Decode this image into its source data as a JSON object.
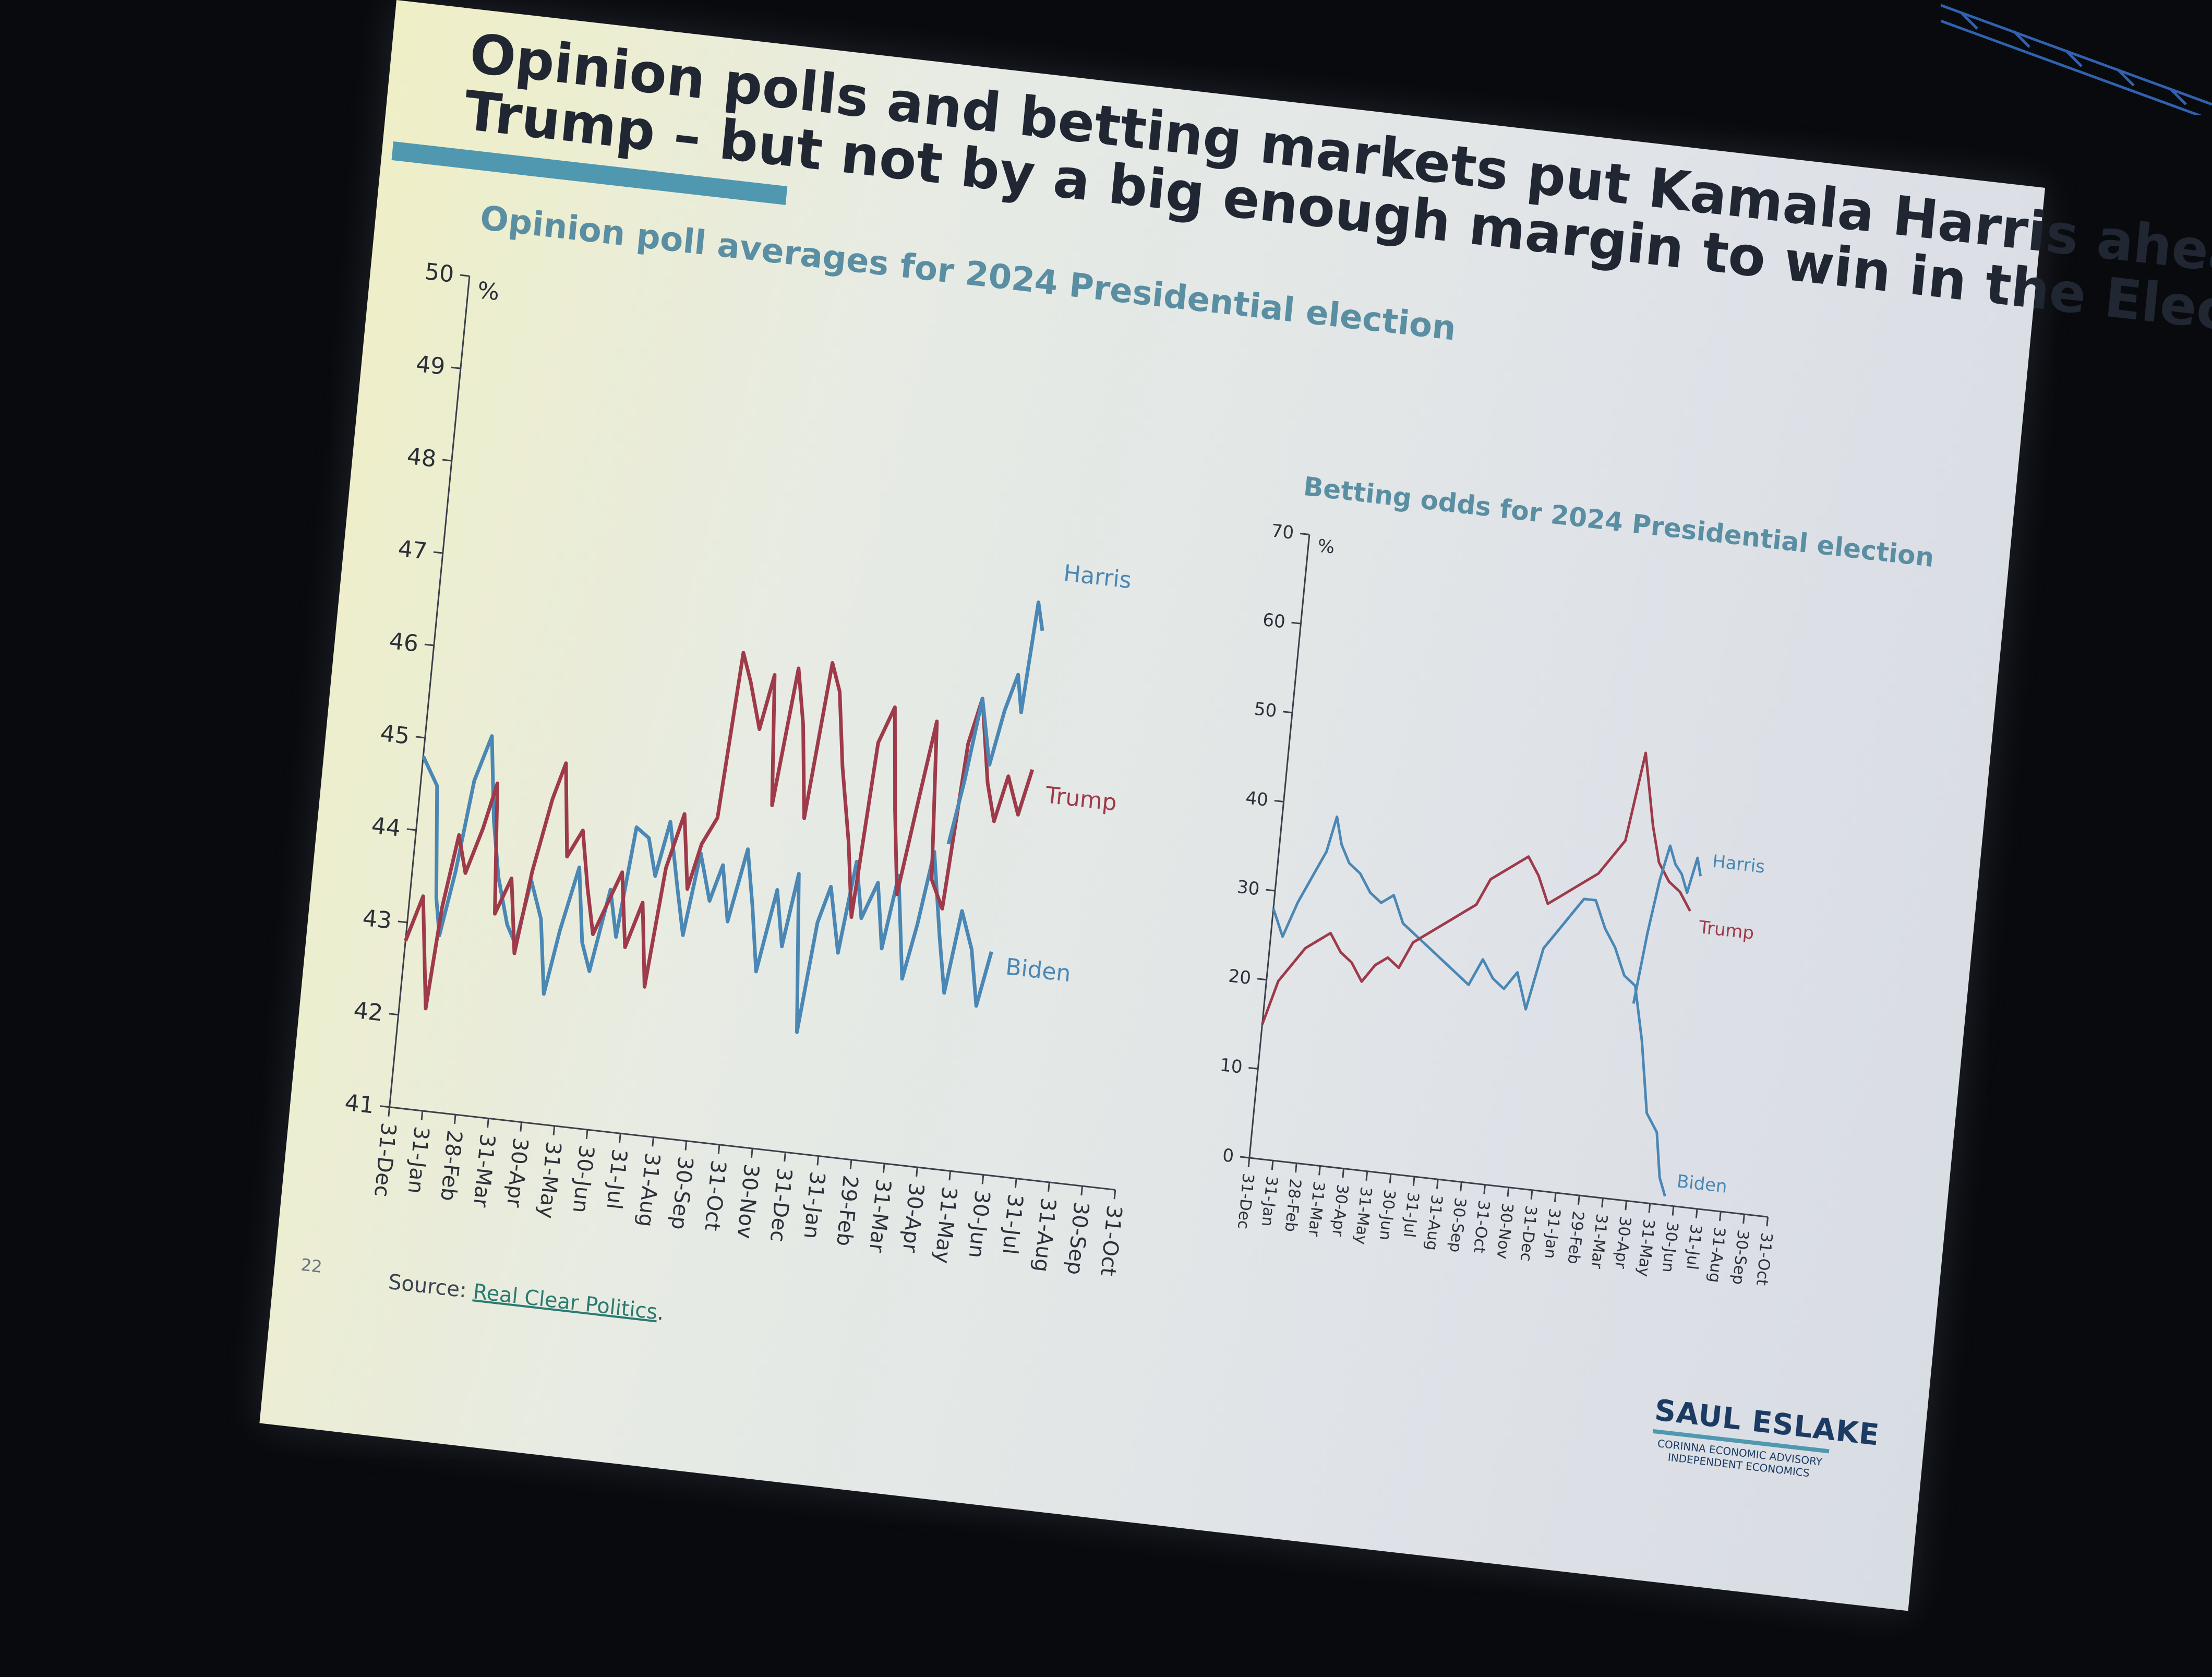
{
  "slide": {
    "title_line1": "Opinion polls and betting markets put Kamala Harris ahead of Donald",
    "title_line2": "Trump – but not by a big enough margin to win in the Electoral College",
    "page_number": "22",
    "source_label": "Source:",
    "source_link": "Real Clear Politics",
    "source_end": ".",
    "brand_name": "SAUL ESLAKE",
    "brand_line1": "CORINNA ECONOMIC ADVISORY",
    "brand_line2": "INDEPENDENT ECONOMICS"
  },
  "colors": {
    "harris": "#4a87b4",
    "trump": "#9e3a4a",
    "biden": "#4a87b4",
    "accent": "#4f98b0",
    "subtitle": "#5a8ea2"
  },
  "chart_data": [
    {
      "type": "line",
      "title": "Opinion poll averages for 2024 Presidential election",
      "ylabel": "%",
      "ylim": [
        41,
        50
      ],
      "yticks": [
        41,
        42,
        43,
        44,
        45,
        46,
        47,
        48,
        49,
        50
      ],
      "x_ticks": [
        "31-Dec",
        "31-Jan",
        "28-Feb",
        "31-Mar",
        "30-Apr",
        "31-May",
        "30-Jun",
        "31-Jul",
        "31-Aug",
        "30-Sep",
        "31-Oct",
        "30-Nov",
        "31-Dec",
        "31-Jan",
        "29-Feb",
        "31-Mar",
        "30-Apr",
        "31-May",
        "30-Jun",
        "31-Jul",
        "31-Aug",
        "30-Sep",
        "31-Oct"
      ],
      "series": [
        {
          "name": "Biden",
          "x": [
            0,
            0.5,
            0.8,
            1,
            1.3,
            1.6,
            2,
            2.3,
            2.6,
            3,
            3.3,
            3.6,
            4,
            4.3,
            4.6,
            5,
            5.3,
            5.6,
            6,
            6.3,
            6.6,
            7,
            7.3,
            7.6,
            8,
            8.3,
            8.6,
            9,
            9.3,
            9.6,
            10,
            10.3,
            10.6,
            11,
            11.3,
            11.6,
            12,
            12.3,
            12.6,
            13,
            13.3,
            13.6,
            14,
            14.3,
            14.6,
            15,
            15.3,
            15.6,
            16,
            16.3,
            16.6,
            17,
            17.3,
            17.6
          ],
          "y": [
            44.8,
            44.5,
            43.3,
            42.9,
            43.6,
            44.6,
            45.1,
            44.2,
            43.6,
            43.1,
            42.9,
            43.6,
            43.2,
            42.4,
            43.1,
            43.8,
            43.0,
            42.7,
            43.6,
            43.1,
            44.3,
            44.2,
            43.8,
            44.4,
            43.7,
            43.2,
            44.1,
            43.6,
            44.0,
            43.4,
            44.2,
            43.6,
            42.9,
            43.8,
            43.2,
            44.0,
            42.3,
            43.5,
            43.9,
            43.2,
            44.2,
            43.6,
            44.0,
            43.3,
            44.1,
            43.0,
            43.6,
            44.4,
            43.5,
            42.9,
            43.8,
            43.4,
            42.8,
            43.4
          ]
        },
        {
          "name": "Trump",
          "x": [
            0,
            0.4,
            0.8,
            1,
            1.3,
            1.6,
            2,
            2.3,
            2.6,
            3,
            3.3,
            3.6,
            4,
            4.3,
            4.6,
            5,
            5.3,
            5.6,
            6,
            6.3,
            6.6,
            7,
            7.3,
            7.6,
            8,
            8.3,
            8.6,
            9,
            9.3,
            9.6,
            10,
            10.3,
            10.6,
            11,
            11.3,
            11.6,
            12,
            12.3,
            12.6,
            13,
            13.3,
            13.6,
            14,
            14.3,
            14.6,
            15,
            15.3,
            15.6,
            16,
            16.3,
            16.6,
            17,
            17.3,
            17.6,
            18,
            18.3
          ],
          "y": [
            42.8,
            43.3,
            42.1,
            43.2,
            44.0,
            43.6,
            44.1,
            44.6,
            43.2,
            43.6,
            42.8,
            43.7,
            44.5,
            44.9,
            43.9,
            44.2,
            43.6,
            43.1,
            43.5,
            43.8,
            43.0,
            43.5,
            42.6,
            43.9,
            44.5,
            43.7,
            44.2,
            44.5,
            46.3,
            46.0,
            45.5,
            46.1,
            44.7,
            46.2,
            45.6,
            44.6,
            46.3,
            46.0,
            45.2,
            44.4,
            43.6,
            45.5,
            45.9,
            44.8,
            43.9,
            45.0,
            45.8,
            44.1,
            43.8,
            45.6,
            46.1,
            45.2,
            44.8,
            45.3,
            44.9,
            45.4
          ]
        },
        {
          "name": "Harris",
          "x": [
            16.0,
            16.3,
            16.6,
            17.0,
            17.3,
            17.6,
            17.8,
            18.0,
            18.2
          ],
          "y": [
            44.5,
            45.2,
            46.1,
            45.4,
            46.0,
            46.4,
            46.0,
            47.2,
            46.9
          ]
        }
      ]
    },
    {
      "type": "line",
      "title": "Betting odds for 2024 Presidential election",
      "ylabel": "%",
      "ylim": [
        0,
        70
      ],
      "yticks": [
        0,
        10,
        20,
        30,
        40,
        50,
        60,
        70
      ],
      "x_ticks": [
        "31-Dec",
        "31-Jan",
        "28-Feb",
        "31-Mar",
        "30-Apr",
        "31-May",
        "30-Jun",
        "31-Jul",
        "31-Aug",
        "30-Sep",
        "31-Oct",
        "30-Nov",
        "31-Dec",
        "31-Jan",
        "29-Feb",
        "31-Mar",
        "30-Apr",
        "31-May",
        "30-Jun",
        "31-Jul",
        "31-Aug",
        "30-Sep",
        "31-Oct"
      ],
      "series": [
        {
          "name": "Biden",
          "x": [
            0,
            0.5,
            1,
            1.5,
            2,
            2.3,
            2.6,
            3,
            3.5,
            4,
            4.5,
            5,
            5.5,
            6,
            6.5,
            7,
            7.5,
            8,
            8.5,
            9,
            9.5,
            10,
            10.5,
            11,
            11.5,
            12,
            12.5,
            13,
            13.5,
            14,
            14.5,
            15,
            15.5,
            16,
            16.5,
            17,
            17.3,
            17.6
          ],
          "y": [
            28,
            25,
            29,
            32,
            35,
            39,
            36,
            34,
            33,
            31,
            30,
            31,
            28,
            27,
            26,
            25,
            24,
            23,
            22,
            25,
            23,
            22,
            24,
            20,
            27,
            29,
            31,
            33,
            33,
            30,
            28,
            25,
            24,
            18,
            10,
            8,
            3,
            1
          ]
        },
        {
          "name": "Trump",
          "x": [
            0,
            0.5,
            1,
            1.5,
            2,
            2.5,
            3,
            3.5,
            4,
            4.5,
            5,
            5.5,
            6,
            6.5,
            7,
            7.5,
            8,
            8.5,
            9,
            9.5,
            10,
            10.5,
            11,
            11.5,
            12,
            12.5,
            13,
            13.5,
            14,
            14.5,
            15,
            15.3,
            15.6,
            16,
            16.5,
            17,
            17.5
          ],
          "y": [
            15,
            20,
            22,
            24,
            25,
            26,
            24,
            23,
            21,
            23,
            24,
            23,
            26,
            27,
            28,
            29,
            30,
            31,
            34,
            35,
            36,
            37,
            35,
            32,
            33,
            34,
            35,
            36,
            38,
            40,
            50,
            46,
            42,
            38,
            36,
            35,
            33
          ]
        },
        {
          "name": "Harris",
          "x": [
            15.5,
            15.8,
            16.1,
            16.4,
            16.7,
            17.0,
            17.3,
            17.6,
            17.8
          ],
          "y": [
            22,
            30,
            36,
            40,
            38,
            37,
            35,
            39,
            37
          ]
        }
      ]
    }
  ]
}
